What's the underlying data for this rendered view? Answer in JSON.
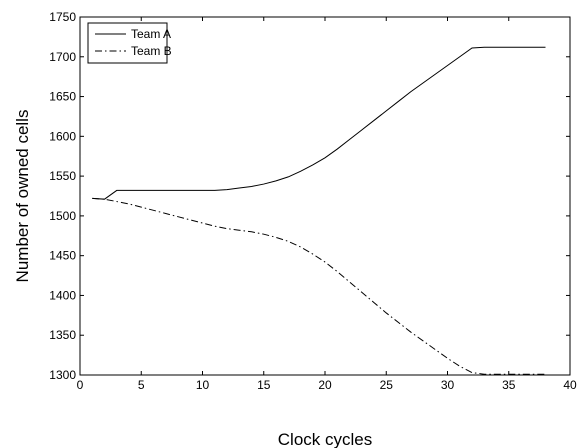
{
  "chart_data": {
    "type": "line",
    "title": "",
    "xlabel": "Clock cycles",
    "ylabel": "Number of owned cells",
    "xlim": [
      0,
      40
    ],
    "ylim": [
      1300,
      1750
    ],
    "xticks": [
      0,
      5,
      10,
      15,
      20,
      25,
      30,
      35,
      40
    ],
    "yticks": [
      1300,
      1350,
      1400,
      1450,
      1500,
      1550,
      1600,
      1650,
      1700,
      1750
    ],
    "grid": false,
    "legend_position": "top-left",
    "series": [
      {
        "name": "Team A",
        "style": "solid",
        "color": "#000000",
        "x": [
          1,
          2,
          3,
          4,
          5,
          6,
          7,
          8,
          9,
          10,
          11,
          12,
          13,
          14,
          15,
          16,
          17,
          18,
          19,
          20,
          21,
          22,
          23,
          24,
          25,
          26,
          27,
          28,
          29,
          30,
          31,
          32,
          33,
          34,
          35,
          36,
          37,
          38
        ],
        "y": [
          1522,
          1521,
          1532,
          1532,
          1532,
          1532,
          1532,
          1532,
          1532,
          1532,
          1532,
          1533,
          1535,
          1537,
          1540,
          1544,
          1549,
          1556,
          1564,
          1573,
          1584,
          1596,
          1608,
          1620,
          1632,
          1644,
          1656,
          1667,
          1678,
          1689,
          1700,
          1711,
          1712,
          1712,
          1712,
          1712,
          1712,
          1712
        ]
      },
      {
        "name": "Team B",
        "style": "dashdot",
        "color": "#000000",
        "x": [
          1,
          2,
          3,
          4,
          5,
          6,
          7,
          8,
          9,
          10,
          11,
          12,
          13,
          14,
          15,
          16,
          17,
          18,
          19,
          20,
          21,
          22,
          23,
          24,
          25,
          26,
          27,
          28,
          29,
          30,
          31,
          32,
          33,
          34,
          35,
          36,
          37,
          38
        ],
        "y": [
          1522,
          1521,
          1518,
          1515,
          1511,
          1507,
          1503,
          1499,
          1495,
          1491,
          1487,
          1484,
          1482,
          1480,
          1477,
          1473,
          1468,
          1461,
          1452,
          1442,
          1430,
          1417,
          1404,
          1391,
          1378,
          1366,
          1354,
          1343,
          1332,
          1321,
          1311,
          1303,
          1301,
          1301,
          1301,
          1301,
          1301,
          1301
        ]
      }
    ]
  }
}
